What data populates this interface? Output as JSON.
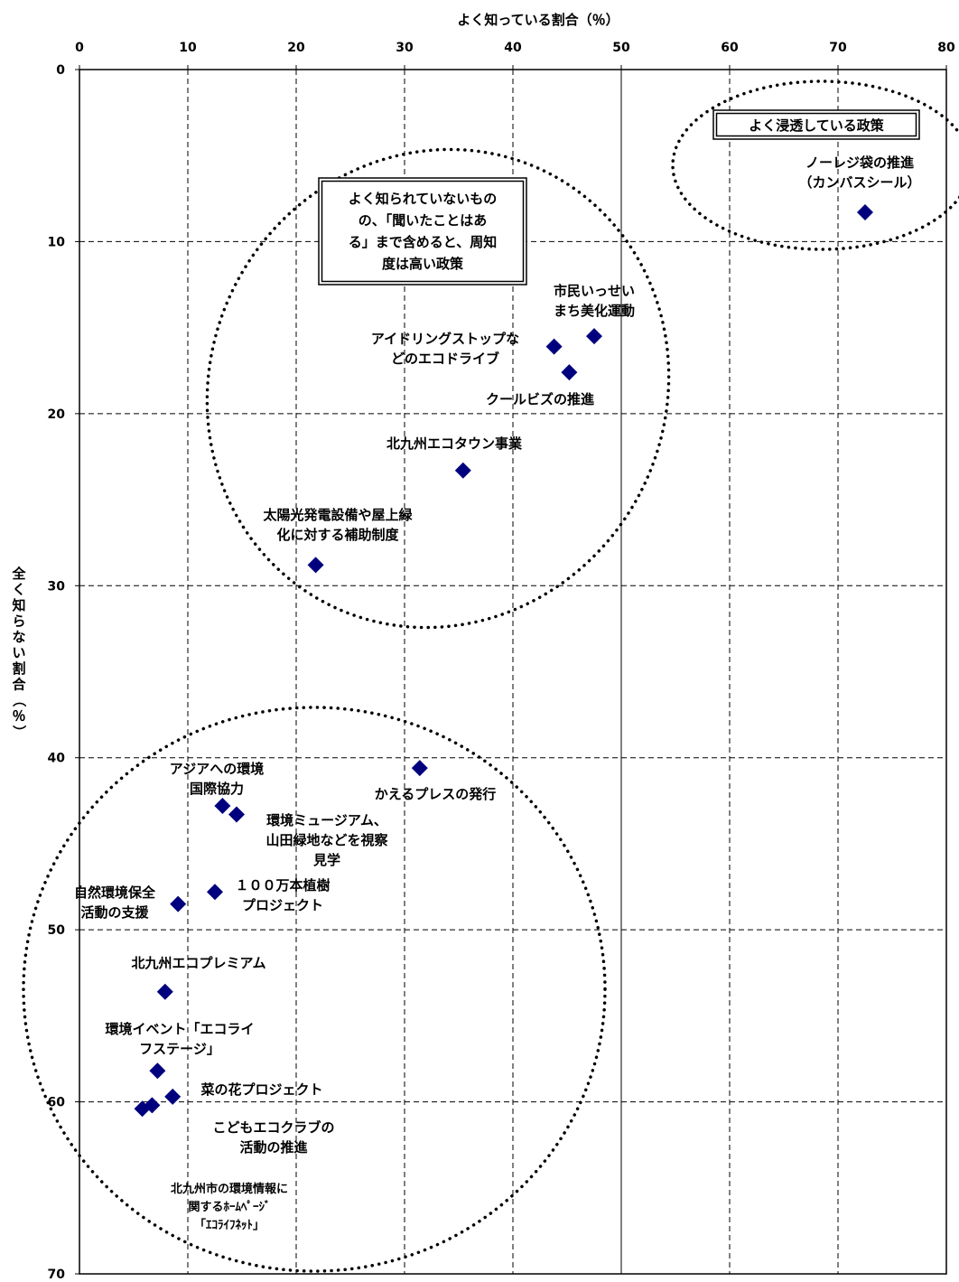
{
  "chart_data": {
    "type": "scatter",
    "xlabel": "よく知っている割合（％）",
    "ylabel": "全く知らない割合（％）",
    "xlim": [
      0,
      80
    ],
    "ylim": [
      0,
      70
    ],
    "y_inverted": true,
    "x_ticks": [
      "0",
      "10",
      "20",
      "30",
      "40",
      "50",
      "60",
      "70",
      "80"
    ],
    "y_ticks": [
      "0",
      "10",
      "20",
      "30",
      "40",
      "50",
      "60",
      "70"
    ],
    "grid": "dashed",
    "marker_color": "#00007f",
    "points": [
      {
        "x": 72.5,
        "y": 8.3
      },
      {
        "x": 47.5,
        "y": 15.5
      },
      {
        "x": 43.8,
        "y": 16.1
      },
      {
        "x": 45.2,
        "y": 17.6
      },
      {
        "x": 35.4,
        "y": 23.3
      },
      {
        "x": 21.8,
        "y": 28.8
      },
      {
        "x": 31.4,
        "y": 40.6
      },
      {
        "x": 13.2,
        "y": 42.8
      },
      {
        "x": 14.5,
        "y": 43.3
      },
      {
        "x": 12.5,
        "y": 47.8
      },
      {
        "x": 9.1,
        "y": 48.5
      },
      {
        "x": 7.9,
        "y": 53.6
      },
      {
        "x": 7.2,
        "y": 58.2
      },
      {
        "x": 8.6,
        "y": 59.7
      },
      {
        "x": 6.7,
        "y": 60.2
      },
      {
        "x": 5.8,
        "y": 60.4
      }
    ],
    "labels": [
      {
        "id": "noreji",
        "lines": [
          "ノーレジ袋の推進",
          "（カンバスシール）"
        ]
      },
      {
        "id": "shimin",
        "lines": [
          "市民いっせい",
          "まち美化運動"
        ]
      },
      {
        "id": "idling",
        "lines": [
          "アイドリングストップな",
          "どのエコドライブ"
        ]
      },
      {
        "id": "coolbiz",
        "lines": [
          "クールビズの推進"
        ]
      },
      {
        "id": "ecotown",
        "lines": [
          "北九州エコタウン事業"
        ]
      },
      {
        "id": "solar",
        "lines": [
          "太陽光発電設備や屋上緑",
          "化に対する補助制度"
        ]
      },
      {
        "id": "kaeru",
        "lines": [
          "かえるプレスの発行"
        ]
      },
      {
        "id": "asia",
        "lines": [
          "アジアへの環境",
          "国際協力"
        ]
      },
      {
        "id": "museum",
        "lines": [
          "環境ミュージアム、",
          "山田緑地などを視察",
          "見学"
        ]
      },
      {
        "id": "million",
        "lines": [
          "１００万本植樹",
          "プロジェクト"
        ]
      },
      {
        "id": "shizen",
        "lines": [
          "自然環境保全",
          "活動の支援"
        ]
      },
      {
        "id": "premium",
        "lines": [
          "北九州エコプレミアム"
        ]
      },
      {
        "id": "event",
        "lines": [
          "環境イベント「エコライ",
          "フステージ」"
        ]
      },
      {
        "id": "nanohana",
        "lines": [
          "菜の花プロジェクト"
        ]
      },
      {
        "id": "kodomo",
        "lines": [
          "こどもエコクラブの",
          "活動の推進"
        ]
      },
      {
        "id": "homepage",
        "lines": [
          "北九州市の環境情報に",
          "関するﾎｰﾑﾍﾟｰｼﾞ",
          "「ｴｺﾗｲﾌﾈｯﾄ」"
        ]
      }
    ],
    "annotations": [
      {
        "id": "well",
        "lines": [
          "よく浸透している政策"
        ]
      },
      {
        "id": "heard",
        "lines": [
          "よく知られていないもの",
          "の、「聞いたことはあ",
          "る」まで含めると、周知",
          "度は高い政策"
        ]
      }
    ]
  }
}
